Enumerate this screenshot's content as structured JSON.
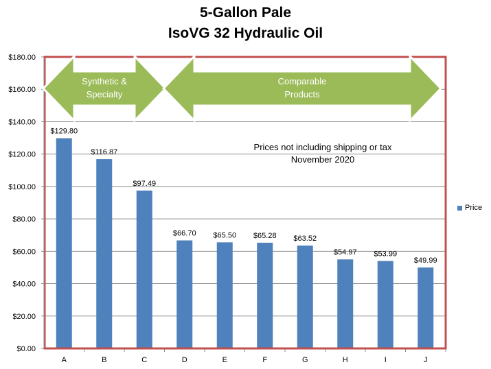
{
  "title_line1": "5-Gallon Pale",
  "title_line2": "IsoVG 32 Hydraulic Oil",
  "note_line1": "Prices not including shipping or tax",
  "note_line2": "November 2020",
  "arrows": [
    {
      "line1": "Synthetic &",
      "line2": "Specialty"
    },
    {
      "line1": "Comparable",
      "line2": "Products"
    }
  ],
  "colors": {
    "bar": "#4f81bd",
    "frame": "#c0504d",
    "arrow_fill": "#9bbb59",
    "arrow_stroke": "#ffffff"
  },
  "chart_data": {
    "type": "bar",
    "categories": [
      "A",
      "B",
      "C",
      "D",
      "E",
      "F",
      "G",
      "H",
      "I",
      "J"
    ],
    "series": [
      {
        "name": "Price",
        "values": [
          129.8,
          116.87,
          97.49,
          66.7,
          65.5,
          65.28,
          63.52,
          54.97,
          53.99,
          49.99
        ]
      }
    ],
    "data_labels": [
      "$129.80",
      "$116.87",
      "$97.49",
      "$66.70",
      "$65.50",
      "$65.28",
      "$63.52",
      "$54.97",
      "$53.99",
      "$49.99"
    ],
    "y_ticks": [
      "$0.00",
      "$20.00",
      "$40.00",
      "$60.00",
      "$80.00",
      "$100.00",
      "$120.00",
      "$140.00",
      "$160.00",
      "$180.00"
    ],
    "ylim": [
      0,
      180
    ],
    "y_step": 20,
    "grid": true,
    "legend_position": "right"
  }
}
